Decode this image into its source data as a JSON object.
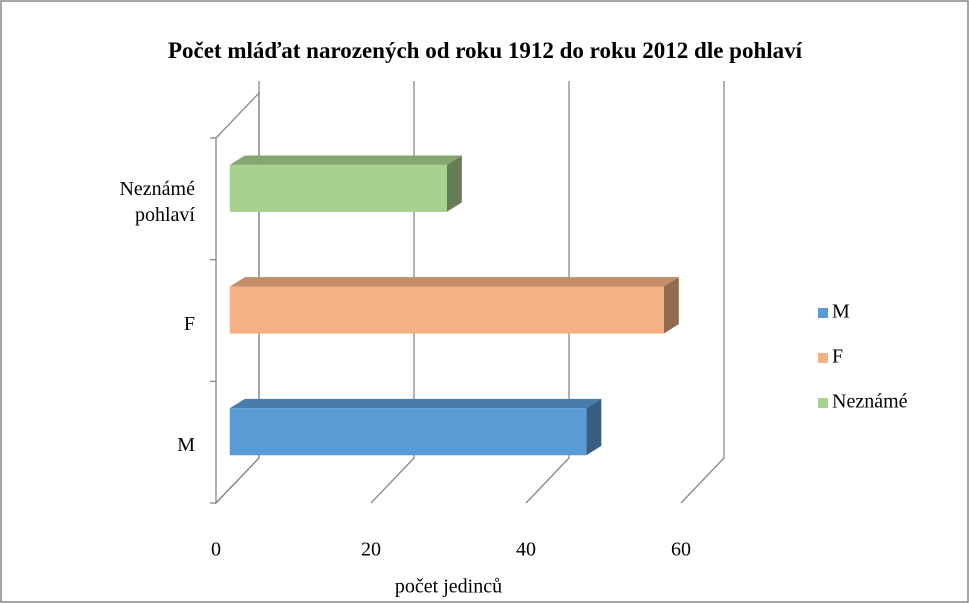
{
  "chart_data": {
    "type": "bar3d-horizontal",
    "title": "Počet mláďat narozených od roku 1912 do roku 2012 dle pohlaví",
    "x_label": "počet jedinců",
    "categories": [
      "M",
      "F",
      "Neznámé pohlaví"
    ],
    "series": [
      {
        "name": "M",
        "color": "#5b9bd5",
        "values": [
          46,
          null,
          null
        ]
      },
      {
        "name": "F",
        "color": "#f4b183",
        "values": [
          null,
          56,
          null
        ]
      },
      {
        "name": "Neznámé",
        "color": "#a9d18e",
        "values": [
          null,
          null,
          28
        ]
      }
    ],
    "xlim": [
      0,
      60
    ],
    "xticks": [
      0,
      20,
      40,
      60
    ],
    "grid": true,
    "legend": "right"
  }
}
